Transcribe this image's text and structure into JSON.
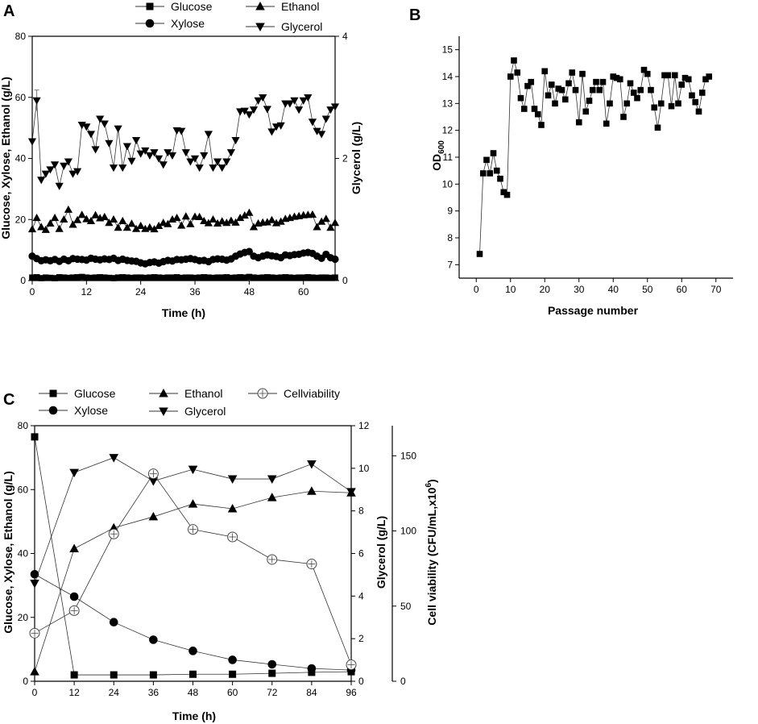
{
  "figure": {
    "panels": [
      {
        "letter": "A",
        "type": "line",
        "xlabel": "Time (h)",
        "ylabel": "Glucose, Xylose, Ethanol (g/L)",
        "y2label": "Glycerol (g/L)",
        "xlim": [
          0,
          67
        ],
        "ylim": [
          0,
          80
        ],
        "y2lim": [
          0,
          4
        ],
        "xticks": [
          0,
          12,
          24,
          36,
          48,
          60
        ],
        "yticks": [
          0,
          20,
          40,
          60,
          80
        ],
        "y2ticks": [
          0,
          2,
          4
        ],
        "legend": [
          "Glucose",
          "Xylose",
          "Ethanol",
          "Glycerol"
        ]
      },
      {
        "letter": "B",
        "type": "line",
        "xlabel": "Passage number",
        "ylabel": "OD",
        "ylabel_sub": "600",
        "xlim": [
          -5,
          75
        ],
        "ylim": [
          6.5,
          15.5
        ],
        "xticks": [
          0,
          10,
          20,
          30,
          40,
          50,
          60,
          70
        ],
        "yticks": [
          7,
          8,
          9,
          10,
          11,
          12,
          13,
          14,
          15
        ]
      },
      {
        "letter": "C",
        "type": "line",
        "xlabel": "Time (h)",
        "ylabel": "Glucose, Xylose, Ethanol (g/L)",
        "y2label": "Glycerol (g/L)",
        "y3label": "Cell viability (CFU/mL,x10",
        "y3label_sup": "6",
        "y3label_end": ")",
        "xlim": [
          0,
          96
        ],
        "ylim": [
          0,
          80
        ],
        "y2lim": [
          0,
          12
        ],
        "y3lim": [
          0,
          170
        ],
        "xticks": [
          0,
          12,
          24,
          36,
          48,
          60,
          72,
          84,
          96
        ],
        "yticks": [
          0,
          20,
          40,
          60,
          80
        ],
        "y2ticks": [
          0,
          2,
          4,
          6,
          8,
          10,
          12
        ],
        "y3ticks": [
          0,
          50,
          100,
          150
        ],
        "legend": [
          "Glucose",
          "Xylose",
          "Ethanol",
          "Glycerol",
          "Cellviability"
        ]
      }
    ]
  },
  "chart_data": [
    {
      "type": "line",
      "panel": "A",
      "title": "",
      "xlabel": "Time (h)",
      "ylabel": "Glucose, Xylose, Ethanol (g/L)",
      "y2label": "Glycerol (g/L)",
      "xlim": [
        0,
        67
      ],
      "ylim": [
        0,
        80
      ],
      "y2lim": [
        0,
        4
      ],
      "series": [
        {
          "name": "Glucose",
          "marker": "square",
          "axis": "left",
          "x": [
            0.0,
            1.0,
            2.0,
            3.0,
            4.0,
            5.0,
            6.0,
            7.0,
            8.0,
            9.0,
            10.0,
            11.0,
            12.0,
            13.0,
            14.0,
            15.0,
            16.0,
            17.0,
            18.0,
            19.0,
            20.0,
            21.0,
            22.0,
            23.0,
            24.0,
            25.0,
            26.0,
            27.0,
            28.0,
            29.0,
            30.0,
            31.0,
            32.0,
            33.0,
            34.0,
            35.0,
            36.0,
            37.0,
            38.0,
            39.0,
            40.0,
            41.0,
            42.0,
            43.0,
            44.0,
            45.0,
            46.0,
            47.0,
            48.0,
            49.0,
            50.0,
            51.0,
            52.0,
            53.0,
            54.0,
            55.0,
            56.0,
            57.0,
            58.0,
            59.0,
            60.0,
            61.0,
            62.0,
            63.0,
            64.0,
            65.0,
            66.0,
            67.0
          ],
          "values": [
            1.0,
            1.1,
            0.8,
            1.0,
            0.9,
            0.8,
            1.1,
            1.0,
            0.9,
            1.0,
            1.1,
            1.2,
            1.0,
            0.9,
            1.0,
            1.1,
            1.0,
            0.9,
            0.8,
            1.0,
            1.1,
            1.0,
            0.9,
            1.0,
            1.0,
            0.9,
            1.0,
            1.1,
            1.0,
            0.9,
            1.0,
            1.0,
            1.1,
            0.9,
            1.0,
            1.0,
            0.9,
            1.0,
            1.1,
            1.0,
            0.9,
            1.0,
            1.0,
            1.1,
            0.9,
            1.0,
            1.1,
            1.0,
            1.2,
            1.0,
            0.9,
            1.0,
            1.1,
            1.0,
            0.9,
            1.0,
            1.1,
            1.0,
            0.9,
            1.0,
            1.0,
            1.1,
            1.0,
            0.9,
            1.0,
            1.0,
            0.9,
            1.0
          ]
        },
        {
          "name": "Xylose",
          "marker": "circle",
          "axis": "left",
          "x": [
            0.0,
            1.0,
            2.0,
            3.0,
            4.0,
            5.0,
            6.0,
            7.0,
            8.0,
            9.0,
            10.0,
            11.0,
            12.0,
            13.0,
            14.0,
            15.0,
            16.0,
            17.0,
            18.0,
            19.0,
            20.0,
            21.0,
            22.0,
            23.0,
            24.0,
            25.0,
            26.0,
            27.0,
            28.0,
            29.0,
            30.0,
            31.0,
            32.0,
            33.0,
            34.0,
            35.0,
            36.0,
            37.0,
            38.0,
            39.0,
            40.0,
            41.0,
            42.0,
            43.0,
            44.0,
            45.0,
            46.0,
            47.0,
            48.0,
            49.0,
            50.0,
            51.0,
            52.0,
            53.0,
            54.0,
            55.0,
            56.0,
            57.0,
            58.0,
            59.0,
            60.0,
            61.0,
            62.0,
            63.0,
            64.0,
            65.0,
            66.0,
            67.0
          ],
          "values": [
            8.0,
            7.2,
            6.5,
            6.8,
            6.5,
            6.9,
            6.3,
            7.0,
            6.5,
            7.2,
            7.0,
            6.9,
            6.7,
            7.3,
            7.0,
            6.8,
            7.1,
            6.9,
            7.3,
            6.6,
            7.0,
            6.6,
            6.4,
            6.3,
            5.8,
            5.5,
            5.9,
            6.1,
            5.7,
            6.2,
            6.6,
            6.4,
            6.9,
            6.8,
            7.0,
            7.2,
            6.9,
            6.5,
            6.6,
            6.2,
            6.9,
            7.1,
            7.0,
            6.7,
            7.1,
            8.0,
            8.7,
            9.2,
            9.5,
            8.0,
            7.5,
            8.0,
            8.4,
            8.1,
            7.9,
            7.5,
            8.4,
            8.2,
            8.5,
            8.6,
            9.0,
            9.2,
            8.9,
            8.0,
            7.3,
            8.6,
            7.5,
            7.0
          ]
        },
        {
          "name": "Ethanol",
          "marker": "triangle-up",
          "axis": "left",
          "x": [
            0.0,
            1.0,
            2.0,
            3.0,
            4.0,
            5.0,
            6.0,
            7.0,
            8.0,
            9.0,
            10.0,
            11.0,
            12.0,
            13.0,
            14.0,
            15.0,
            16.0,
            17.0,
            18.0,
            19.0,
            20.0,
            21.0,
            22.0,
            23.0,
            24.0,
            25.0,
            26.0,
            27.0,
            28.0,
            29.0,
            30.0,
            31.0,
            32.0,
            33.0,
            34.0,
            35.0,
            36.0,
            37.0,
            38.0,
            39.0,
            40.0,
            41.0,
            42.0,
            43.0,
            44.0,
            45.0,
            46.0,
            47.0,
            48.0,
            49.0,
            50.0,
            51.0,
            52.0,
            53.0,
            54.0,
            55.0,
            56.0,
            57.0,
            58.0,
            59.0,
            60.0,
            61.0,
            62.0,
            63.0,
            64.0,
            65.0,
            66.0,
            67.0
          ],
          "values": [
            16.8,
            20.5,
            17.5,
            16.6,
            18.7,
            20.5,
            16.9,
            20.0,
            23.2,
            18.3,
            19.8,
            21.5,
            20.1,
            19.5,
            21.4,
            20.4,
            20.8,
            18.9,
            20.0,
            17.3,
            19.5,
            17.3,
            18.6,
            16.9,
            17.9,
            16.9,
            17.4,
            16.8,
            17.9,
            18.9,
            18.5,
            20.0,
            20.5,
            18.0,
            21.0,
            18.5,
            20.9,
            20.8,
            19.5,
            18.8,
            20.0,
            18.7,
            19.4,
            18.9,
            19.6,
            19.0,
            20.5,
            21.3,
            22.2,
            17.5,
            18.7,
            19.0,
            19.1,
            19.8,
            18.8,
            19.3,
            20.2,
            20.5,
            20.9,
            21.1,
            21.4,
            21.5,
            21.6,
            17.5,
            19.3,
            20.2,
            17.3,
            18.9
          ]
        },
        {
          "name": "Glycerol",
          "marker": "triangle-down",
          "axis": "right",
          "x": [
            0.0,
            1.0,
            2.0,
            3.0,
            4.0,
            5.0,
            6.0,
            7.0,
            8.0,
            9.0,
            10.0,
            11.0,
            12.0,
            13.0,
            14.0,
            15.0,
            16.0,
            17.0,
            18.0,
            19.0,
            20.0,
            21.0,
            22.0,
            23.0,
            24.0,
            25.0,
            26.0,
            27.0,
            28.0,
            29.0,
            30.0,
            31.0,
            32.0,
            33.0,
            34.0,
            35.0,
            36.0,
            37.0,
            38.0,
            39.0,
            40.0,
            41.0,
            42.0,
            43.0,
            44.0,
            45.0,
            46.0,
            47.0,
            48.0,
            49.0,
            50.0,
            51.0,
            52.0,
            53.0,
            54.0,
            55.0,
            56.0,
            57.0,
            58.0,
            59.0,
            60.0,
            61.0,
            62.0,
            63.0,
            64.0,
            65.0,
            66.0,
            67.0
          ],
          "values": [
            2.28,
            2.95,
            1.65,
            1.75,
            1.82,
            1.9,
            1.55,
            1.88,
            1.95,
            1.75,
            1.79,
            2.55,
            2.52,
            2.4,
            2.15,
            2.65,
            2.57,
            2.25,
            1.85,
            2.49,
            1.85,
            2.2,
            1.96,
            2.3,
            2.08,
            2.13,
            2.05,
            2.1,
            2.0,
            1.9,
            2.1,
            2.05,
            2.46,
            2.45,
            2.1,
            1.95,
            2.0,
            1.85,
            2.05,
            2.4,
            1.85,
            1.95,
            1.85,
            1.95,
            2.1,
            2.3,
            2.77,
            2.78,
            2.72,
            2.8,
            2.95,
            3.0,
            2.81,
            2.44,
            2.52,
            2.54,
            2.9,
            2.9,
            2.95,
            2.8,
            2.95,
            3.0,
            2.6,
            2.45,
            2.4,
            2.65,
            2.8,
            2.85
          ]
        }
      ]
    },
    {
      "type": "line",
      "panel": "B",
      "title": "",
      "xlabel": "Passage number",
      "ylabel": "OD600",
      "xlim": [
        -5,
        75
      ],
      "ylim": [
        6.5,
        15.5
      ],
      "series": [
        {
          "name": "OD600",
          "marker": "square",
          "x": [
            1,
            2,
            3,
            4,
            5,
            6,
            7,
            8,
            9,
            10,
            11,
            12,
            13,
            14,
            15,
            16,
            17,
            18,
            19,
            20,
            21,
            22,
            23,
            24,
            25,
            26,
            27,
            28,
            29,
            30,
            31,
            32,
            33,
            34,
            35,
            36,
            37,
            38,
            39,
            40,
            41,
            42,
            43,
            44,
            45,
            46,
            47,
            48,
            49,
            50,
            51,
            52,
            53,
            54,
            55,
            56,
            57,
            58,
            59,
            60,
            61,
            62,
            63,
            64,
            65,
            66,
            67,
            68
          ],
          "values": [
            7.4,
            10.4,
            10.9,
            10.4,
            11.15,
            10.5,
            10.2,
            9.7,
            9.6,
            14.0,
            14.6,
            14.15,
            13.2,
            12.8,
            13.65,
            13.8,
            12.8,
            12.6,
            12.2,
            14.2,
            13.3,
            13.7,
            13.0,
            13.55,
            13.5,
            13.15,
            13.75,
            14.15,
            13.5,
            12.3,
            14.1,
            12.7,
            13.1,
            13.5,
            13.8,
            13.5,
            13.8,
            12.25,
            13.0,
            14.0,
            13.95,
            13.9,
            12.5,
            13.0,
            13.75,
            13.4,
            13.2,
            13.5,
            14.25,
            14.1,
            13.5,
            12.85,
            12.1,
            13.0,
            14.05,
            14.05,
            12.9,
            14.05,
            13.0,
            13.7,
            13.95,
            13.9,
            13.3,
            13.05,
            12.7,
            13.4,
            13.9,
            14.0
          ]
        }
      ]
    },
    {
      "type": "line",
      "panel": "C",
      "title": "",
      "xlabel": "Time (h)",
      "ylabel": "Glucose, Xylose, Ethanol (g/L)",
      "y2label": "Glycerol (g/L)",
      "y3label": "Cell viability (CFU/mL,x10^6)",
      "xlim": [
        0,
        96
      ],
      "ylim": [
        0,
        80
      ],
      "y2lim": [
        0,
        12
      ],
      "y3lim": [
        0,
        170
      ],
      "series": [
        {
          "name": "Glucose",
          "marker": "square",
          "axis": "left",
          "x": [
            0,
            12,
            24,
            36,
            48,
            60,
            72,
            84,
            96
          ],
          "values": [
            76.5,
            2.0,
            2.0,
            2.0,
            2.2,
            2.2,
            2.5,
            2.8,
            3.0
          ]
        },
        {
          "name": "Xylose",
          "marker": "circle",
          "axis": "left",
          "x": [
            0,
            12,
            24,
            36,
            48,
            60,
            72,
            84,
            96
          ],
          "values": [
            33.5,
            26.5,
            18.5,
            13.0,
            9.5,
            6.7,
            5.3,
            4.0,
            3.5
          ]
        },
        {
          "name": "Ethanol",
          "marker": "triangle-up",
          "axis": "left",
          "x": [
            0,
            12,
            24,
            36,
            48,
            60,
            72,
            84,
            96
          ],
          "values": [
            3.0,
            41.5,
            48.0,
            51.5,
            55.5,
            54.0,
            57.5,
            59.5,
            59.0
          ]
        },
        {
          "name": "Glycerol",
          "marker": "triangle-down",
          "axis": "right",
          "x": [
            0,
            12,
            24,
            36,
            48,
            60,
            72,
            84,
            96
          ],
          "values": [
            4.6,
            9.8,
            10.5,
            9.4,
            9.95,
            9.5,
            9.5,
            10.2,
            8.9
          ]
        },
        {
          "name": "Cellviability",
          "marker": "open-circle",
          "axis": "right2",
          "x": [
            0,
            12,
            24,
            36,
            48,
            60,
            72,
            84,
            96
          ],
          "values": [
            32,
            47,
            98,
            138,
            101,
            96,
            81,
            78,
            11
          ]
        }
      ]
    }
  ]
}
